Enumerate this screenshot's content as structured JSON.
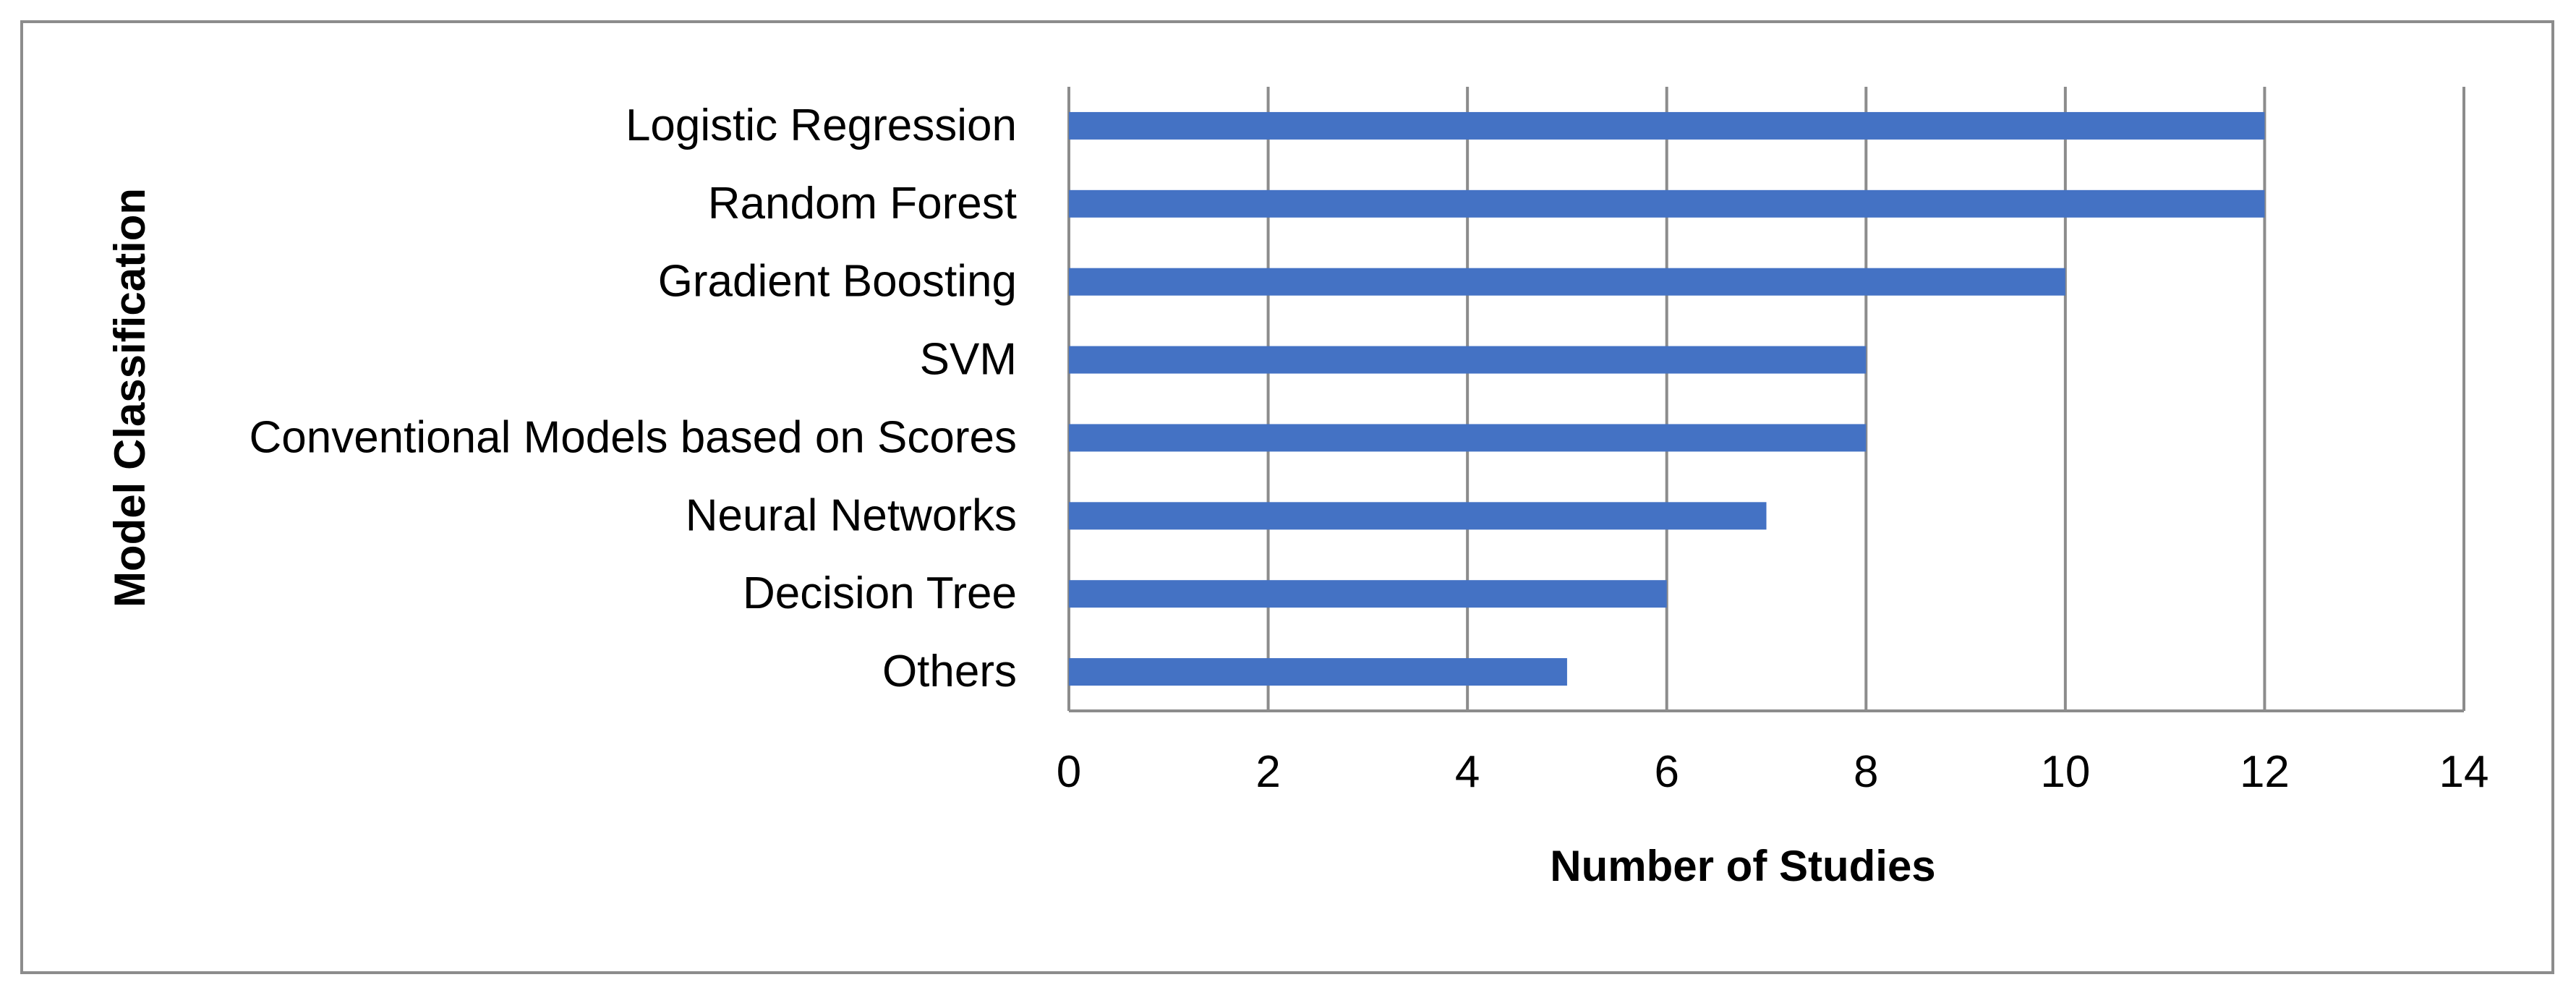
{
  "chart_data": {
    "type": "bar",
    "orientation": "horizontal",
    "categories": [
      "Logistic Regression",
      "Random Forest",
      "Gradient Boosting",
      "SVM",
      "Conventional Models based on Scores",
      "Neural Networks",
      "Decision Tree",
      "Others"
    ],
    "values": [
      12,
      12,
      10,
      8,
      8,
      7,
      6,
      5
    ],
    "xlabel": "Number of Studies",
    "ylabel": "Model Classification",
    "xlim": [
      0,
      14
    ],
    "xticks": [
      "0",
      "2",
      "4",
      "6",
      "8",
      "10",
      "12",
      "14"
    ],
    "grid": "vertical",
    "bar_color": "#4472c4",
    "legend": "none"
  }
}
